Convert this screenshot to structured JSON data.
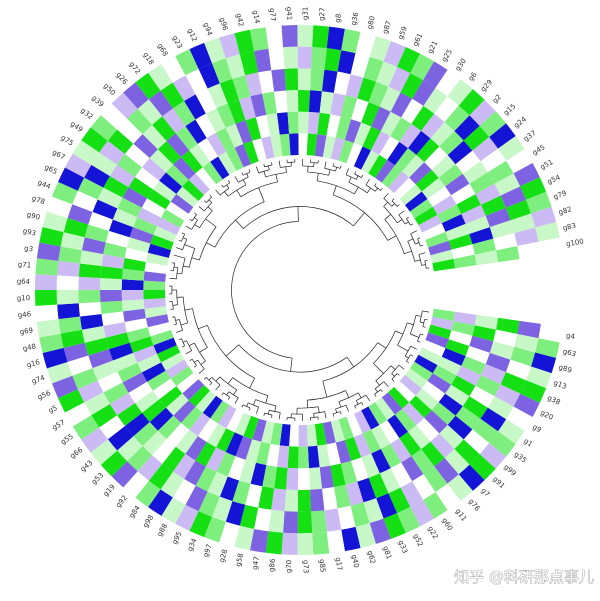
{
  "chart_data": {
    "type": "circular-heatmap",
    "categories": [
      "g4",
      "g63",
      "g89",
      "g13",
      "g38",
      "g20",
      "g9",
      "g1",
      "g35",
      "g99",
      "g91",
      "g7",
      "g76",
      "g11",
      "g60",
      "g22",
      "g52",
      "g33",
      "g81",
      "g62",
      "g40",
      "g17",
      "g85",
      "g73",
      "g70",
      "g86",
      "g47",
      "g58",
      "g28",
      "g97",
      "g34",
      "g95",
      "g88",
      "g98",
      "g84",
      "g92",
      "g19",
      "g53",
      "g43",
      "g66",
      "g55",
      "g57",
      "g5",
      "g56",
      "g74",
      "g16",
      "g48",
      "g69",
      "g46",
      "g10",
      "g64",
      "g71",
      "g3",
      "g93",
      "g90",
      "g78",
      "g44",
      "g65",
      "g67",
      "g75",
      "g49",
      "g32",
      "g39",
      "g50",
      "g26",
      "g72",
      "g18",
      "g68",
      "g23",
      "g12",
      "g94",
      "g96",
      "g42",
      "g14",
      "g77",
      "g41",
      "g31",
      "g27",
      "g8",
      "g36",
      "g80",
      "g87",
      "g59",
      "g61",
      "g21",
      "g25",
      "g30",
      "g6",
      "g29",
      "g2",
      "g15",
      "g24",
      "g37",
      "g45",
      "g51",
      "g54",
      "g79",
      "g82",
      "g83",
      "g100"
    ],
    "values": [
      [
        2,
        -1,
        3,
        -2,
        0,
        1,
        -3,
        2,
        1,
        -1,
        0,
        3,
        -2,
        1,
        2,
        -3,
        -1,
        0,
        2,
        1,
        -2,
        3,
        1,
        -1,
        0,
        -3,
        2,
        1,
        -2,
        3,
        1,
        0,
        -1,
        2,
        -3,
        1,
        3,
        -2,
        0,
        2,
        -1,
        1,
        3,
        -3,
        2,
        0,
        -2,
        1,
        -1,
        3,
        2,
        -2,
        0,
        1,
        -3,
        3,
        1,
        -1,
        2,
        0,
        -2,
        1,
        3,
        -1,
        0,
        2,
        -3,
        1,
        2,
        -2,
        3,
        0,
        -1,
        1,
        2,
        -3,
        0,
        3,
        -2,
        1,
        -1,
        2,
        0,
        -3,
        1,
        3,
        -2,
        2,
        -1,
        0,
        1,
        -3,
        2,
        3,
        -1,
        0,
        2,
        -2,
        1,
        3
      ],
      [
        -1,
        2,
        0,
        3,
        -3,
        1,
        2,
        -2,
        0,
        1,
        3,
        -1,
        2,
        -3,
        0,
        1,
        2,
        -1,
        3,
        -2,
        0,
        1,
        -3,
        2,
        3,
        -1,
        0,
        2,
        1,
        -2,
        -3,
        3,
        1,
        0,
        -1,
        2,
        -2,
        1,
        3,
        0,
        2,
        -3,
        1,
        -1,
        3,
        2,
        0,
        -2,
        1,
        -1,
        -3,
        2,
        3,
        0,
        1,
        -2,
        2,
        -1,
        0,
        3,
        1,
        -3,
        2,
        -2,
        3,
        1,
        0,
        -1,
        2,
        1,
        -2,
        3,
        0,
        1,
        -3,
        2,
        1,
        -1,
        3,
        0,
        2,
        -2,
        1,
        3,
        -1,
        0,
        -3,
        2,
        1,
        -2,
        3,
        1,
        0,
        -1,
        2,
        -3,
        1,
        3,
        0,
        2
      ],
      [
        1,
        3,
        -2,
        0,
        2,
        -1,
        3,
        1,
        -3,
        2,
        -2,
        0,
        1,
        3,
        -1,
        2,
        -3,
        1,
        0,
        2,
        3,
        -2,
        1,
        0,
        -1,
        3,
        2,
        -3,
        1,
        0,
        2,
        -1,
        3,
        -2,
        1,
        0,
        2,
        -3,
        3,
        1,
        0,
        -2,
        2,
        1,
        -3,
        3,
        -1,
        0,
        2,
        -2,
        1,
        3,
        -1,
        2,
        0,
        -3,
        1,
        2,
        -2,
        3,
        0,
        -1,
        1,
        3,
        -2,
        2,
        -3,
        0,
        1,
        2,
        3,
        -1,
        -2,
        2,
        0,
        1,
        3,
        -3,
        1,
        -1,
        2,
        0,
        3,
        -2,
        1,
        2,
        -1,
        -3,
        3,
        0,
        1,
        2,
        -2,
        0,
        3,
        -1,
        1,
        -3,
        2,
        1
      ],
      [
        3,
        0,
        1,
        -2,
        -1,
        2,
        0,
        3,
        2,
        -3,
        1,
        -1,
        3,
        2,
        -2,
        0,
        1,
        3,
        -3,
        -1,
        2,
        0,
        -2,
        3,
        1,
        -1,
        3,
        0,
        2,
        -3,
        1,
        2,
        -2,
        -1,
        3,
        0,
        1,
        2,
        -3,
        3,
        -1,
        2,
        0,
        1,
        -2,
        3,
        1,
        -3,
        0,
        2,
        -1,
        3,
        1,
        -2,
        2,
        0,
        -3,
        1,
        3,
        -1,
        2,
        0,
        -2,
        1,
        3,
        -1,
        2,
        -3,
        0,
        1,
        3,
        2,
        -1,
        0,
        -2,
        3,
        1,
        2,
        -3,
        0,
        -1,
        3,
        2,
        1,
        -2,
        0,
        3,
        -1,
        1,
        2,
        -3,
        0,
        1,
        2,
        -1,
        3,
        -2,
        1,
        0,
        2
      ],
      [
        -2,
        1,
        2,
        0,
        3,
        -1,
        1,
        -3,
        2,
        0,
        3,
        1,
        -2,
        2,
        0,
        -1,
        3,
        -3,
        1,
        2,
        0,
        -1,
        2,
        3,
        -2,
        1,
        0,
        3,
        -3,
        1,
        2,
        -2,
        0,
        1,
        3,
        -1,
        2,
        1,
        -3,
        0,
        3,
        1,
        -1,
        2,
        0,
        -2,
        3,
        2,
        -3,
        1,
        0,
        -1,
        2,
        1,
        3,
        -2,
        0,
        2,
        -3,
        1,
        -1,
        3,
        0,
        2,
        1,
        -2,
        3,
        -1,
        0,
        -3,
        2,
        1,
        3,
        -2,
        0,
        1,
        -1,
        2,
        3,
        -3,
        0,
        2,
        1,
        -1,
        3,
        -2,
        1,
        0,
        2,
        -3,
        3,
        -1,
        0,
        2,
        1,
        -2,
        3,
        1,
        -1,
        0
      ],
      [
        0,
        2,
        -3,
        1,
        3,
        -2,
        0,
        1,
        2,
        -1,
        3,
        -3,
        1,
        0,
        2,
        -1,
        2,
        3,
        -2,
        1,
        -3,
        0,
        2,
        1,
        -1,
        3,
        -2,
        1,
        0,
        2,
        3,
        -1,
        1,
        -3,
        2,
        0,
        -2,
        3,
        1,
        -1,
        2,
        0,
        3,
        -2,
        1,
        -3,
        2,
        1,
        0,
        3,
        -1,
        2,
        -2,
        3,
        1,
        0,
        2,
        -3,
        -1,
        1,
        3,
        2,
        0,
        -1,
        -2,
        3,
        1,
        0,
        2,
        -3,
        1,
        -1,
        3,
        2,
        0,
        -2,
        1,
        3,
        -3,
        2,
        0,
        1,
        -1,
        3,
        2,
        -2,
        0,
        1,
        3,
        -1,
        2,
        -3,
        1,
        0,
        -2,
        3,
        2,
        -1,
        1,
        0
      ]
    ],
    "colorscale": {
      "vlim": [
        -3,
        3
      ],
      "colors": [
        "#1414d6",
        "#7d62e2",
        "#cbbaf3",
        "#ffffff",
        "#c8f7c8",
        "#7eee7e",
        "#14e014"
      ]
    },
    "watermark": "知乎 @科研那点事儿"
  }
}
